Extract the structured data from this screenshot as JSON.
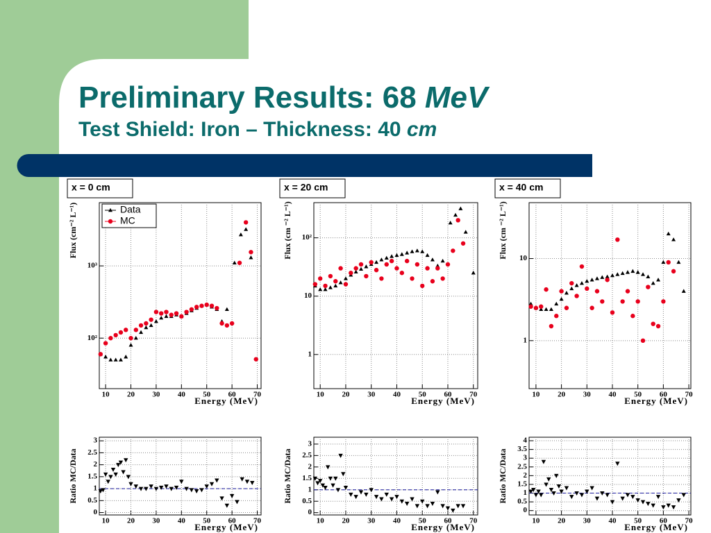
{
  "slide": {
    "title": [
      "Preliminary Results: 68",
      "MeV"
    ],
    "subtitle": [
      "Test Shield: Iron – Thickness: 40",
      "cm"
    ]
  },
  "chart_data": [
    {
      "type": "scatter",
      "panel_label": "x = 0 cm",
      "xlabel": "Energy (MeV)",
      "ylabel": "Flux (cm⁻² L⁻¹)",
      "ylog": true,
      "grid": true,
      "legend": "upper left",
      "xlim": [
        7.5,
        71.5
      ],
      "xticks": [
        10,
        20,
        30,
        40,
        50,
        60,
        70
      ],
      "ylim": [
        20,
        7500
      ],
      "yticks": [
        {
          "value": 100,
          "label": "10²"
        },
        {
          "value": 1000,
          "label": "10³"
        }
      ],
      "series": [
        {
          "name": "Data",
          "color": "#000000",
          "marker": "triangle-up",
          "x": [
            8,
            10,
            12,
            14,
            16,
            18,
            20,
            22,
            24,
            26,
            28,
            30,
            32,
            34,
            36,
            38,
            40,
            42,
            44,
            46,
            48,
            50,
            52,
            54,
            56,
            58,
            61,
            63.5,
            65.5,
            67.5
          ],
          "values": [
            60,
            55,
            50,
            50,
            50,
            55,
            80,
            100,
            120,
            140,
            150,
            170,
            190,
            200,
            200,
            210,
            200,
            220,
            240,
            260,
            280,
            290,
            270,
            250,
            170,
            250,
            1100,
            2700,
            3200,
            1300
          ]
        },
        {
          "name": "MC",
          "color": "#e8001c",
          "marker": "circle",
          "x": [
            8,
            10,
            12,
            14,
            16,
            18,
            20,
            22,
            24,
            26,
            28,
            30,
            32,
            34,
            36,
            38,
            40,
            42,
            44,
            46,
            48,
            50,
            52,
            54,
            56,
            58,
            60,
            63,
            65.5,
            67.5,
            69.5
          ],
          "values": [
            60,
            85,
            100,
            110,
            120,
            130,
            100,
            130,
            150,
            160,
            180,
            230,
            220,
            230,
            210,
            220,
            200,
            230,
            250,
            270,
            280,
            290,
            280,
            260,
            160,
            150,
            160,
            1100,
            4000,
            1550,
            51
          ]
        }
      ]
    },
    {
      "type": "scatter",
      "panel_label": "x = 20 cm",
      "xlabel": "Energy (MeV)",
      "ylabel": "Flux (cm ⁻² L⁻¹)",
      "ylog": true,
      "grid": true,
      "xlim": [
        7.5,
        71.7
      ],
      "xticks": [
        10,
        20,
        30,
        40,
        50,
        60,
        70
      ],
      "ylim": [
        0.26,
        400
      ],
      "yticks": [
        1,
        10,
        {
          "value": 100,
          "label": "10²"
        }
      ],
      "series": [
        {
          "color": "#000000",
          "marker": "triangle-up",
          "x": [
            8,
            10,
            12,
            14,
            16,
            18,
            20,
            22,
            24,
            26,
            28,
            30,
            32,
            34,
            36,
            38,
            40,
            42,
            44,
            46,
            48,
            50,
            52,
            54,
            56,
            58,
            61,
            63,
            65,
            67,
            70
          ],
          "values": [
            15,
            13,
            13,
            14,
            15,
            17,
            20,
            23,
            26,
            29,
            32,
            35,
            38,
            42,
            45,
            48,
            50,
            52,
            55,
            58,
            60,
            58,
            50,
            42,
            33,
            40,
            180,
            245,
            315,
            125,
            25
          ]
        },
        {
          "color": "#e8001c",
          "marker": "circle",
          "x": [
            8,
            10,
            12,
            14,
            16,
            18,
            20,
            22,
            24,
            26,
            28,
            30,
            32,
            34,
            36,
            38,
            40,
            42,
            44,
            46,
            48,
            50,
            52,
            54,
            56,
            58,
            60,
            62,
            64,
            66
          ],
          "values": [
            16,
            20,
            15,
            22,
            18,
            30,
            16,
            25,
            30,
            35,
            22,
            38,
            28,
            20,
            35,
            40,
            30,
            25,
            40,
            20,
            35,
            15,
            30,
            18,
            30,
            20,
            35,
            60,
            200,
            80
          ]
        }
      ]
    },
    {
      "type": "scatter",
      "panel_label": "x = 40 cm",
      "xlabel": "Energy (MeV)",
      "ylabel": "Flux (cm ⁻² L⁻¹)",
      "ylog": true,
      "grid": true,
      "xlim": [
        7.3,
        70.8
      ],
      "xticks": [
        10,
        20,
        30,
        40,
        50,
        60,
        70
      ],
      "ylim": [
        0.26,
        48
      ],
      "yticks": [
        1,
        10
      ],
      "series": [
        {
          "color": "#000000",
          "marker": "triangle-up",
          "x": [
            8,
            10,
            12,
            14,
            16,
            18,
            20,
            22,
            24,
            26,
            28,
            30,
            32,
            34,
            36,
            38,
            40,
            42,
            44,
            46,
            48,
            50,
            52,
            54,
            56,
            58,
            60,
            62,
            64,
            66,
            68
          ],
          "values": [
            2.8,
            2.5,
            2.4,
            2.4,
            2.4,
            2.8,
            3.2,
            3.8,
            4.3,
            4.7,
            5,
            5.3,
            5.5,
            5.7,
            5.9,
            6,
            6.2,
            6.4,
            6.6,
            6.8,
            7,
            6.8,
            6.4,
            6,
            5,
            5.5,
            9,
            20,
            17,
            9,
            4
          ]
        },
        {
          "color": "#e8001c",
          "marker": "circle",
          "x": [
            8,
            10,
            12,
            14,
            16,
            18,
            20,
            22,
            24,
            26,
            28,
            30,
            32,
            34,
            36,
            38,
            40,
            42,
            44,
            46,
            48,
            50,
            52,
            54,
            56,
            58,
            60,
            62,
            64
          ],
          "values": [
            2.6,
            2.5,
            2.6,
            4.2,
            1.5,
            2,
            4,
            2.5,
            5,
            3.5,
            8,
            4.3,
            2.5,
            4,
            3,
            5.5,
            2.2,
            17,
            3,
            4,
            2,
            3,
            1,
            4.5,
            1.6,
            1.5,
            3,
            9,
            7
          ]
        }
      ]
    },
    {
      "type": "scatter",
      "xlabel": "Energy (MeV)",
      "ylabel": "Ratio MC/Data",
      "grid": true,
      "hline": 1,
      "xlim": [
        7.5,
        71.5
      ],
      "xticks": [
        10,
        20,
        30,
        40,
        50,
        60,
        70
      ],
      "ylim": [
        -0.1,
        3.15
      ],
      "yticks": [
        0,
        0.5,
        1,
        1.5,
        2,
        2.5,
        3
      ],
      "series": [
        {
          "color": "#000000",
          "marker": "triangle-down",
          "x": [
            8,
            9,
            10,
            11,
            12,
            13,
            14,
            15,
            16,
            17,
            18,
            19,
            20,
            22,
            24,
            26,
            28,
            30,
            32,
            34,
            36,
            38,
            40,
            42,
            44,
            46,
            48,
            50,
            52,
            54,
            56,
            58,
            60,
            62,
            64,
            66,
            68
          ],
          "values": [
            0.9,
            0.95,
            1.6,
            1.3,
            1.5,
            1.8,
            1.6,
            2.0,
            2.1,
            1.7,
            2.2,
            1.5,
            1.2,
            1.1,
            1.0,
            1.0,
            1.1,
            1.0,
            1.05,
            1.1,
            1.0,
            1.05,
            1.3,
            1.0,
            0.95,
            0.9,
            0.95,
            1.1,
            1.2,
            1.35,
            0.6,
            0.3,
            0.7,
            0.45,
            1.4,
            1.3,
            1.25
          ]
        }
      ]
    },
    {
      "type": "scatter",
      "xlabel": "Energy (MeV)",
      "ylabel": "Ratio MC/Data",
      "grid": true,
      "hline": 1,
      "xlim": [
        7.5,
        71.7
      ],
      "xticks": [
        10,
        20,
        30,
        40,
        50,
        60,
        70
      ],
      "ylim": [
        -0.1,
        3.3
      ],
      "yticks": [
        0,
        0.5,
        1,
        1.5,
        2,
        2.5,
        3
      ],
      "series": [
        {
          "color": "#000000",
          "marker": "triangle-down",
          "x": [
            8,
            9,
            10,
            11,
            12,
            13,
            14,
            15,
            16,
            17,
            18,
            19,
            20,
            22,
            24,
            26,
            28,
            30,
            32,
            34,
            36,
            38,
            40,
            42,
            44,
            46,
            48,
            50,
            52,
            54,
            56,
            58,
            60,
            62,
            64,
            66
          ],
          "values": [
            1.5,
            1.3,
            1.4,
            1.2,
            1.1,
            2.0,
            1.5,
            1.2,
            1.5,
            1.0,
            2.5,
            1.7,
            1.1,
            0.8,
            0.7,
            0.9,
            0.8,
            1.0,
            0.7,
            0.6,
            0.8,
            0.6,
            0.7,
            0.5,
            0.4,
            0.6,
            0.3,
            0.5,
            0.3,
            0.4,
            0.9,
            0.3,
            0.2,
            0.1,
            0.3,
            0.3
          ]
        }
      ]
    },
    {
      "type": "scatter",
      "xlabel": "Energy (MeV)",
      "ylabel": "Ratio MC/Data",
      "grid": true,
      "hline": 1,
      "xlim": [
        7.3,
        70.8
      ],
      "xticks": [
        10,
        20,
        30,
        40,
        50,
        60,
        70
      ],
      "ylim": [
        -0.25,
        4.2
      ],
      "yticks": [
        0,
        0.5,
        1,
        1.5,
        2,
        2.5,
        3,
        3.5,
        4
      ],
      "series": [
        {
          "color": "#000000",
          "marker": "triangle-down",
          "x": [
            8,
            9,
            10,
            11,
            12,
            13,
            14,
            15,
            16,
            17,
            18,
            19,
            20,
            22,
            24,
            26,
            28,
            30,
            32,
            34,
            36,
            38,
            40,
            42,
            44,
            46,
            48,
            50,
            52,
            54,
            56,
            58,
            60,
            62,
            64,
            66,
            68
          ],
          "values": [
            1.1,
            1.2,
            0.9,
            1.1,
            0.9,
            2.8,
            1.5,
            1.8,
            1.2,
            1.0,
            2.0,
            1.4,
            1.1,
            1.3,
            0.8,
            1.0,
            0.9,
            1.1,
            1.3,
            0.7,
            1.0,
            0.9,
            0.5,
            2.7,
            0.7,
            0.9,
            0.8,
            0.6,
            0.5,
            0.4,
            0.3,
            0.8,
            0.2,
            0.3,
            0.2,
            0.6,
            0.9
          ]
        }
      ]
    }
  ]
}
